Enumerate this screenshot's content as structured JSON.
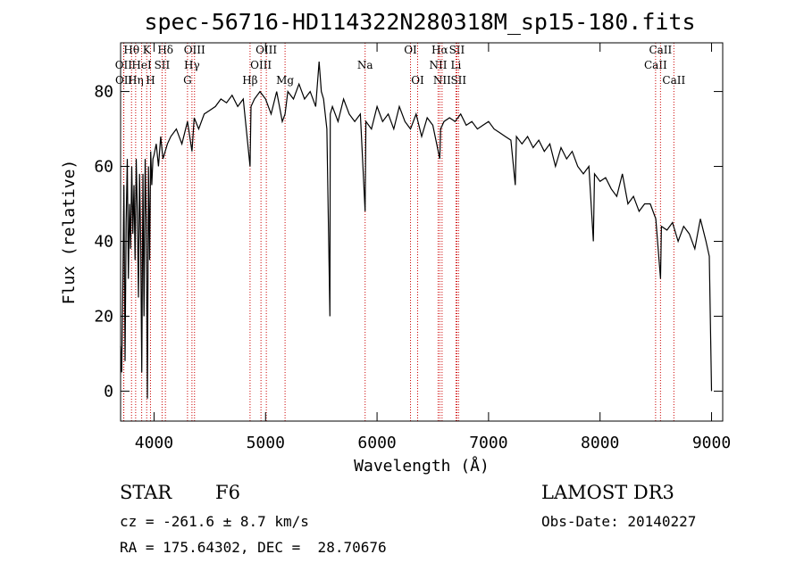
{
  "chart_data": {
    "type": "line",
    "title": "spec-56716-HD114322N280318M_sp15-180.fits",
    "xlabel": "Wavelength (Å)",
    "ylabel": "Flux (relative)",
    "xlim": [
      3700,
      9100
    ],
    "ylim": [
      -8,
      93
    ],
    "xticks": [
      4000,
      5000,
      6000,
      7000,
      8000,
      9000
    ],
    "yticks": [
      0,
      20,
      40,
      60,
      80
    ],
    "series": [
      {
        "name": "flux",
        "x": [
          3700,
          3710,
          3720,
          3730,
          3740,
          3750,
          3760,
          3770,
          3780,
          3790,
          3800,
          3810,
          3820,
          3830,
          3840,
          3850,
          3860,
          3870,
          3880,
          3890,
          3900,
          3910,
          3920,
          3930,
          3940,
          3950,
          3960,
          3970,
          3980,
          3990,
          4000,
          4020,
          4040,
          4060,
          4080,
          4100,
          4120,
          4150,
          4200,
          4250,
          4300,
          4340,
          4360,
          4400,
          4450,
          4500,
          4550,
          4600,
          4650,
          4700,
          4750,
          4800,
          4861,
          4870,
          4900,
          4950,
          5000,
          5050,
          5100,
          5150,
          5175,
          5200,
          5250,
          5300,
          5350,
          5400,
          5450,
          5480,
          5500,
          5520,
          5550,
          5577,
          5580,
          5600,
          5650,
          5700,
          5750,
          5800,
          5850,
          5893,
          5900,
          5950,
          6000,
          6050,
          6100,
          6150,
          6200,
          6250,
          6300,
          6350,
          6400,
          6450,
          6500,
          6563,
          6570,
          6600,
          6650,
          6700,
          6750,
          6800,
          6850,
          6900,
          6950,
          7000,
          7050,
          7100,
          7150,
          7200,
          7240,
          7250,
          7300,
          7350,
          7400,
          7450,
          7500,
          7550,
          7600,
          7650,
          7700,
          7750,
          7800,
          7850,
          7900,
          7940,
          7950,
          8000,
          8050,
          8100,
          8150,
          8200,
          8250,
          8300,
          8350,
          8400,
          8450,
          8500,
          8542,
          8550,
          8600,
          8650,
          8700,
          8750,
          8800,
          8850,
          8900,
          8950,
          8980,
          9000
        ],
        "y": [
          12,
          5,
          28,
          55,
          8,
          45,
          62,
          30,
          50,
          38,
          60,
          42,
          55,
          35,
          62,
          48,
          25,
          58,
          40,
          5,
          58,
          20,
          62,
          45,
          -2,
          60,
          35,
          64,
          55,
          62,
          63,
          66,
          60,
          68,
          62,
          64,
          66,
          68,
          70,
          66,
          72,
          64,
          73,
          70,
          74,
          75,
          76,
          78,
          77,
          79,
          76,
          78,
          60,
          76,
          78,
          80,
          78,
          74,
          80,
          72,
          74,
          80,
          78,
          82,
          78,
          80,
          76,
          88,
          80,
          78,
          70,
          20,
          74,
          76,
          72,
          78,
          74,
          72,
          74,
          48,
          72,
          70,
          76,
          72,
          74,
          70,
          76,
          72,
          70,
          74,
          68,
          73,
          71,
          62,
          70,
          72,
          73,
          72,
          74,
          71,
          72,
          70,
          71,
          72,
          70,
          69,
          68,
          67,
          55,
          68,
          66,
          68,
          65,
          67,
          64,
          66,
          60,
          65,
          62,
          64,
          60,
          58,
          60,
          40,
          58,
          56,
          57,
          54,
          52,
          58,
          50,
          52,
          48,
          50,
          50,
          46,
          30,
          44,
          43,
          45,
          40,
          44,
          42,
          38,
          46,
          40,
          36,
          0
        ]
      }
    ],
    "line_markers": [
      {
        "label": "OII",
        "x": 3727,
        "row": 2
      },
      {
        "label": "OII",
        "x": 3729,
        "row": 3
      },
      {
        "label": "Hθ",
        "x": 3798,
        "row": 1
      },
      {
        "label": "Hη",
        "x": 3835,
        "row": 3
      },
      {
        "label": "HeI",
        "x": 3889,
        "row": 2
      },
      {
        "label": "K",
        "x": 3934,
        "row": 1
      },
      {
        "label": "H",
        "x": 3968,
        "row": 3
      },
      {
        "label": "SII",
        "x": 4072,
        "row": 2
      },
      {
        "label": "Hδ",
        "x": 4102,
        "row": 1
      },
      {
        "label": "G",
        "x": 4300,
        "row": 3
      },
      {
        "label": "Hγ",
        "x": 4340,
        "row": 2
      },
      {
        "label": "OIII",
        "x": 4363,
        "row": 1
      },
      {
        "label": "Hβ",
        "x": 4861,
        "row": 3
      },
      {
        "label": "OIII",
        "x": 4959,
        "row": 2
      },
      {
        "label": "OIII",
        "x": 5007,
        "row": 1
      },
      {
        "label": "Mg",
        "x": 5175,
        "row": 3
      },
      {
        "label": "Na",
        "x": 5893,
        "row": 2
      },
      {
        "label": "OI",
        "x": 6300,
        "row": 1
      },
      {
        "label": "OI",
        "x": 6364,
        "row": 3
      },
      {
        "label": "NII",
        "x": 6548,
        "row": 2
      },
      {
        "label": "Hα",
        "x": 6563,
        "row": 1
      },
      {
        "label": "NII",
        "x": 6583,
        "row": 3
      },
      {
        "label": "SII",
        "x": 6716,
        "row": 1
      },
      {
        "label": "Li",
        "x": 6708,
        "row": 2
      },
      {
        "label": "SII",
        "x": 6731,
        "row": 3
      },
      {
        "label": "CaII",
        "x": 8498,
        "row": 2
      },
      {
        "label": "CaII",
        "x": 8542,
        "row": 1
      },
      {
        "label": "CaII",
        "x": 8662,
        "row": 3
      }
    ]
  },
  "info": {
    "object_class": "STAR",
    "subclass": "F6",
    "survey": "LAMOST DR3",
    "cz": "cz = -261.6 ± 8.7 km/s",
    "obs_date": "Obs-Date: 20140227",
    "coords": "RA = 175.64302, DEC =  28.70676"
  },
  "colors": {
    "line": "#000000",
    "marker": "#cc0000",
    "axis": "#000000"
  }
}
